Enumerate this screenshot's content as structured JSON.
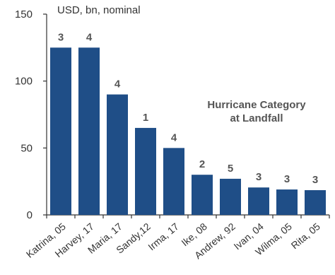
{
  "chart_data": {
    "type": "bar",
    "title": "",
    "unit_label": "USD, bn, nominal",
    "xlabel": "",
    "ylabel": "",
    "ylim": [
      0,
      150
    ],
    "yticks": [
      0,
      50,
      100,
      150
    ],
    "categories": [
      "Katrina, 05",
      "Harvey, 17",
      "Maria, 17",
      "Sandy,12",
      "Irma, 17",
      "Ike, 08",
      "Andrew, 92",
      "Ivan, 04",
      "Wilma, 05",
      "Rita, 05"
    ],
    "values": [
      125,
      125,
      90,
      65,
      50,
      30,
      27,
      20.5,
      19,
      18.5
    ],
    "data_labels": [
      "3",
      "4",
      "4",
      "1",
      "4",
      "2",
      "5",
      "3",
      "3",
      "3"
    ],
    "annotation": [
      "Hurricane Category",
      "at Landfall"
    ],
    "bar_color": "#1f4e87",
    "grid": false,
    "legend": "none"
  }
}
